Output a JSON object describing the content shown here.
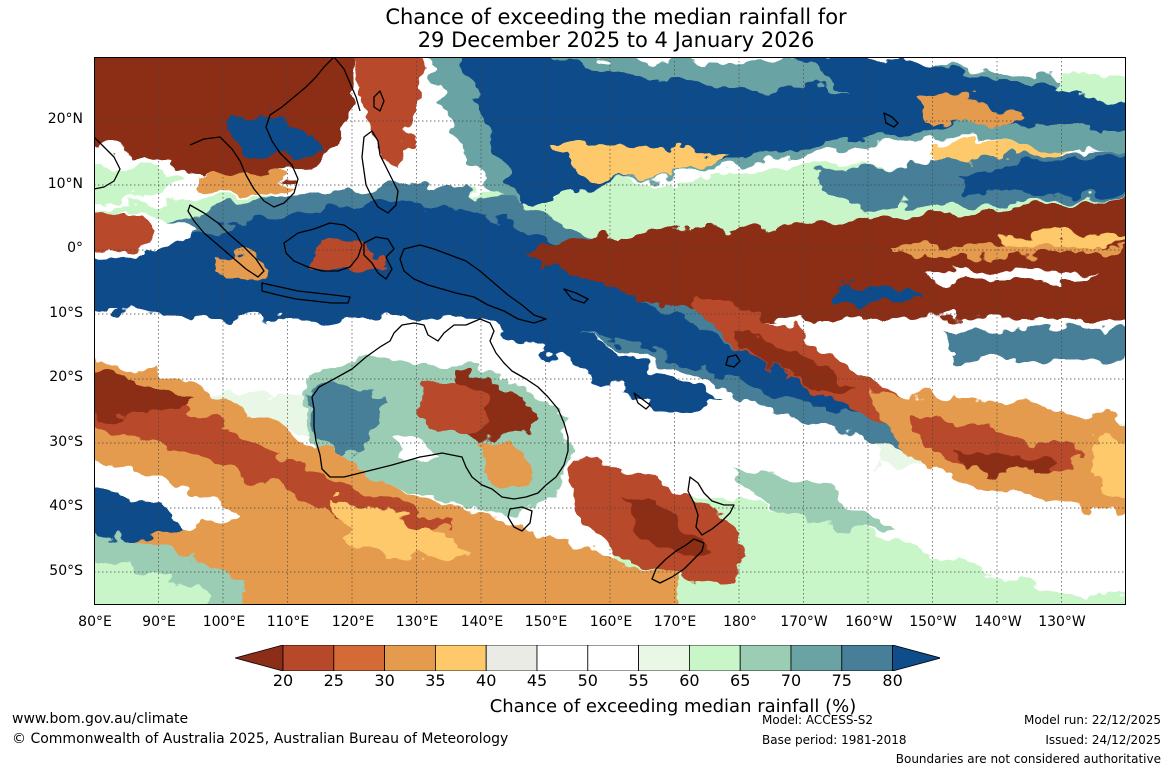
{
  "title": {
    "line1": "Chance of exceeding the median rainfall for",
    "line2": "29 December 2025 to 4 January 2026"
  },
  "map": {
    "lat_labels": [
      "20°N",
      "10°N",
      "0°",
      "10°S",
      "20°S",
      "30°S",
      "40°S",
      "50°S"
    ],
    "lon_labels": [
      "80°E",
      "90°E",
      "100°E",
      "110°E",
      "120°E",
      "130°E",
      "140°E",
      "150°E",
      "160°E",
      "170°E",
      "180°",
      "170°W",
      "160°W",
      "150°W",
      "140°W",
      "130°W"
    ],
    "lat_range": [
      -55,
      30
    ],
    "lon_range": [
      80,
      240
    ]
  },
  "colorbar": {
    "ticks": [
      "20",
      "25",
      "30",
      "35",
      "40",
      "45",
      "50",
      "55",
      "60",
      "65",
      "70",
      "75",
      "80"
    ],
    "colors": [
      "#8c2d18",
      "#b8482a",
      "#d46a35",
      "#e59b4e",
      "#fec96b",
      "#ebebe6",
      "#ffffff",
      "#ffffff",
      "#e8f7e6",
      "#c8f6c8",
      "#9bcdb5",
      "#6aa3a3",
      "#477f99",
      "#0f4c8a"
    ],
    "label": "Chance of exceeding median rainfall (%)"
  },
  "footer": {
    "url": "www.bom.gov.au/climate",
    "copyright": "© Commonwealth of Australia 2025, Australian Bureau of Meteorology",
    "model": "Model: ACCESS-S2",
    "base_period": "Base period: 1981-2018",
    "model_run": "Model run: 22/12/2025",
    "issued": "Issued: 24/12/2025",
    "boundaries": "Boundaries are not considered authoritative"
  }
}
